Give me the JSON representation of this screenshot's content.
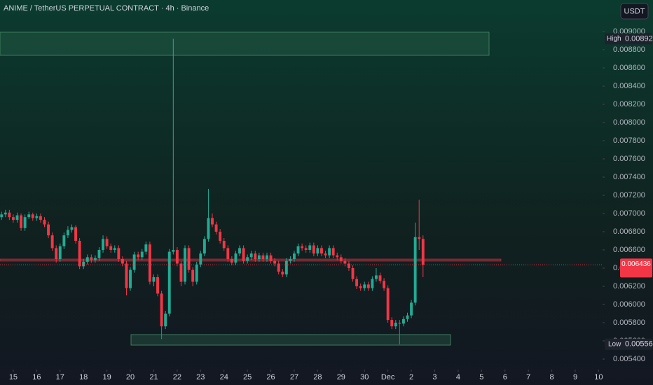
{
  "chart_data": {
    "type": "candlestick",
    "title": "ANIME / TetherUS PERPETUAL CONTRACT · 4h · Binance",
    "currency": "USDT",
    "up_color": "#22ab94",
    "down_color": "#f23645",
    "open": [
      0.00696,
      0.00699,
      0.00701,
      0.00696,
      0.00693,
      0.00698,
      0.00684,
      0.00696,
      0.00699,
      0.00695,
      0.00697,
      0.00693,
      0.00688,
      0.00676,
      0.00662,
      0.0065,
      0.00664,
      0.00676,
      0.00682,
      0.00685,
      0.0067,
      0.00642,
      0.00647,
      0.00652,
      0.00649,
      0.00651,
      0.0066,
      0.00672,
      0.00664,
      0.0066,
      0.00662,
      0.0065,
      0.00645,
      0.00618,
      0.00638,
      0.00655,
      0.00652,
      0.00658,
      0.00666,
      0.00625,
      0.0063,
      0.00612,
      0.00576,
      0.0059,
      0.00658,
      0.0066,
      0.00645,
      0.00625,
      0.00662,
      0.00638,
      0.00625,
      0.00644,
      0.00656,
      0.00672,
      0.00695,
      0.00688,
      0.0068,
      0.0067,
      0.00662,
      0.0065,
      0.00646,
      0.00656,
      0.00662,
      0.00648,
      0.00652,
      0.00656,
      0.0065,
      0.00654,
      0.0065,
      0.00654,
      0.00648,
      0.00645,
      0.00636,
      0.00633,
      0.00648,
      0.0065,
      0.00656,
      0.00664,
      0.00662,
      0.0066,
      0.00665,
      0.00656,
      0.00662,
      0.00656,
      0.00654,
      0.00662,
      0.00654,
      0.00652,
      0.00648,
      0.00645,
      0.0064,
      0.00628,
      0.0062,
      0.00618,
      0.00622,
      0.00618,
      0.00628,
      0.00632,
      0.00626,
      0.00618,
      0.00583,
      0.00576,
      0.0058,
      0.00579,
      0.00584,
      0.00588,
      0.00602,
      0.00674,
      0.00672
    ],
    "high": [
      0.00702,
      0.00704,
      0.00704,
      0.00699,
      0.00701,
      0.007,
      0.00699,
      0.00702,
      0.00701,
      0.007,
      0.007,
      0.00696,
      0.00691,
      0.00679,
      0.00665,
      0.00667,
      0.00679,
      0.00686,
      0.00688,
      0.00687,
      0.00673,
      0.0065,
      0.00655,
      0.00655,
      0.00654,
      0.00663,
      0.00676,
      0.00675,
      0.00667,
      0.00665,
      0.00665,
      0.00653,
      0.00648,
      0.00641,
      0.00658,
      0.00658,
      0.00661,
      0.00669,
      0.00669,
      0.00633,
      0.00633,
      0.00615,
      0.00593,
      0.00661,
      0.00892,
      0.00663,
      0.00648,
      0.00665,
      0.00665,
      0.00641,
      0.00647,
      0.00659,
      0.00675,
      0.00727,
      0.007,
      0.00691,
      0.00683,
      0.00673,
      0.00665,
      0.00653,
      0.00659,
      0.00665,
      0.00665,
      0.00655,
      0.00659,
      0.00659,
      0.00657,
      0.00657,
      0.00657,
      0.00657,
      0.00651,
      0.00648,
      0.00639,
      0.00651,
      0.00653,
      0.00659,
      0.00667,
      0.00667,
      0.00665,
      0.00668,
      0.00668,
      0.00665,
      0.00665,
      0.00659,
      0.00665,
      0.00665,
      0.00657,
      0.00655,
      0.00651,
      0.00648,
      0.00643,
      0.00631,
      0.00623,
      0.00625,
      0.00625,
      0.00631,
      0.0064,
      0.00635,
      0.00629,
      0.00621,
      0.00586,
      0.00583,
      0.00583,
      0.00587,
      0.00591,
      0.00605,
      0.0069,
      0.00715,
      0.00676
    ],
    "low": [
      0.00693,
      0.00696,
      0.00693,
      0.0069,
      0.0069,
      0.00681,
      0.00681,
      0.00694,
      0.00692,
      0.00692,
      0.0069,
      0.00685,
      0.00673,
      0.00659,
      0.00646,
      0.00647,
      0.00661,
      0.00673,
      0.00679,
      0.00667,
      0.00639,
      0.00639,
      0.00644,
      0.00646,
      0.00646,
      0.00648,
      0.00657,
      0.00661,
      0.00657,
      0.00657,
      0.00647,
      0.00642,
      0.0061,
      0.00615,
      0.00635,
      0.00649,
      0.00649,
      0.00655,
      0.00622,
      0.0062,
      0.00609,
      0.00562,
      0.00573,
      0.00587,
      0.00655,
      0.00642,
      0.0062,
      0.00622,
      0.00635,
      0.0062,
      0.00622,
      0.00641,
      0.00653,
      0.00669,
      0.00685,
      0.00677,
      0.00667,
      0.00659,
      0.00647,
      0.00643,
      0.00643,
      0.00653,
      0.00645,
      0.00645,
      0.00649,
      0.00647,
      0.00647,
      0.00647,
      0.00647,
      0.00645,
      0.00642,
      0.00633,
      0.0063,
      0.0063,
      0.00645,
      0.00647,
      0.00653,
      0.00659,
      0.00657,
      0.00657,
      0.00653,
      0.00653,
      0.00653,
      0.00651,
      0.00651,
      0.00651,
      0.00649,
      0.00645,
      0.00642,
      0.00637,
      0.00625,
      0.00617,
      0.00615,
      0.00615,
      0.00615,
      0.00615,
      0.00625,
      0.00623,
      0.00615,
      0.0058,
      0.00573,
      0.00573,
      0.005563,
      0.00576,
      0.00581,
      0.00585,
      0.00599,
      0.0066,
      0.0063
    ],
    "close": [
      0.00699,
      0.00701,
      0.00696,
      0.00693,
      0.00698,
      0.00684,
      0.00696,
      0.00699,
      0.00695,
      0.00697,
      0.00693,
      0.00688,
      0.00676,
      0.00662,
      0.0065,
      0.00664,
      0.00676,
      0.00682,
      0.00685,
      0.0067,
      0.00642,
      0.00647,
      0.00652,
      0.00649,
      0.00651,
      0.0066,
      0.00672,
      0.00664,
      0.0066,
      0.00662,
      0.0065,
      0.00645,
      0.00618,
      0.00638,
      0.00655,
      0.00652,
      0.00658,
      0.00666,
      0.00625,
      0.0063,
      0.00612,
      0.00576,
      0.0059,
      0.00658,
      0.0066,
      0.00645,
      0.00625,
      0.00662,
      0.00638,
      0.00625,
      0.00644,
      0.00656,
      0.00672,
      0.00695,
      0.00688,
      0.0068,
      0.0067,
      0.00662,
      0.0065,
      0.00646,
      0.00656,
      0.00662,
      0.00648,
      0.00652,
      0.00656,
      0.0065,
      0.00654,
      0.0065,
      0.00654,
      0.00648,
      0.00645,
      0.00636,
      0.00633,
      0.00648,
      0.0065,
      0.00656,
      0.00664,
      0.00662,
      0.0066,
      0.00665,
      0.00656,
      0.00662,
      0.00656,
      0.00654,
      0.00662,
      0.00654,
      0.00652,
      0.00648,
      0.00645,
      0.0064,
      0.00628,
      0.0062,
      0.00618,
      0.00622,
      0.00618,
      0.00628,
      0.00632,
      0.00626,
      0.00618,
      0.00583,
      0.00576,
      0.0058,
      0.00579,
      0.00584,
      0.00588,
      0.00602,
      0.00674,
      0.00672,
      0.006436
    ],
    "xlim": [
      -0.4,
      154
    ],
    "xticks": [
      {
        "value": 3,
        "label": "15"
      },
      {
        "value": 9,
        "label": "16"
      },
      {
        "value": 15,
        "label": "17"
      },
      {
        "value": 21,
        "label": "18"
      },
      {
        "value": 27,
        "label": "19"
      },
      {
        "value": 33,
        "label": "20"
      },
      {
        "value": 39,
        "label": "21"
      },
      {
        "value": 45,
        "label": "22"
      },
      {
        "value": 51,
        "label": "23"
      },
      {
        "value": 57,
        "label": "24"
      },
      {
        "value": 63,
        "label": "25"
      },
      {
        "value": 69,
        "label": "26"
      },
      {
        "value": 75,
        "label": "27"
      },
      {
        "value": 81,
        "label": "28"
      },
      {
        "value": 87,
        "label": "29"
      },
      {
        "value": 93,
        "label": "30"
      },
      {
        "value": 99,
        "label": "Dec"
      },
      {
        "value": 105,
        "label": "2"
      },
      {
        "value": 111,
        "label": "3"
      },
      {
        "value": 117,
        "label": "4"
      },
      {
        "value": 123,
        "label": "5"
      },
      {
        "value": 129,
        "label": "6"
      },
      {
        "value": 135,
        "label": "7"
      },
      {
        "value": 141,
        "label": "8"
      },
      {
        "value": 147,
        "label": "9"
      },
      {
        "value": 153,
        "label": "10"
      }
    ],
    "ylim": [
      0.0053,
      0.00915
    ],
    "yticks": [
      {
        "value": 0.0054,
        "label": "0.005400"
      },
      {
        "value": 0.0056,
        "label": "0.005600"
      },
      {
        "value": 0.0058,
        "label": "0.005800"
      },
      {
        "value": 0.006,
        "label": "0.006000"
      },
      {
        "value": 0.0062,
        "label": "0.006200"
      },
      {
        "value": 0.0064,
        "label": "0.006400"
      },
      {
        "value": 0.0066,
        "label": "0.006600"
      },
      {
        "value": 0.0068,
        "label": "0.006800"
      },
      {
        "value": 0.007,
        "label": "0.007000"
      },
      {
        "value": 0.0072,
        "label": "0.007200"
      },
      {
        "value": 0.0074,
        "label": "0.007400"
      },
      {
        "value": 0.0076,
        "label": "0.007600"
      },
      {
        "value": 0.0078,
        "label": "0.007800"
      },
      {
        "value": 0.008,
        "label": "0.008000"
      },
      {
        "value": 0.0082,
        "label": "0.008200"
      },
      {
        "value": 0.0084,
        "label": "0.008400"
      },
      {
        "value": 0.0086,
        "label": "0.008600"
      },
      {
        "value": 0.0088,
        "label": "0.008800"
      },
      {
        "value": 0.009,
        "label": "0.009000"
      }
    ],
    "high_label": "High",
    "high_value": {
      "value": 0.00892,
      "label": "0.008920"
    },
    "low_label": "Low",
    "low_value": 0.005563,
    "last_price": 0.006436
  }
}
